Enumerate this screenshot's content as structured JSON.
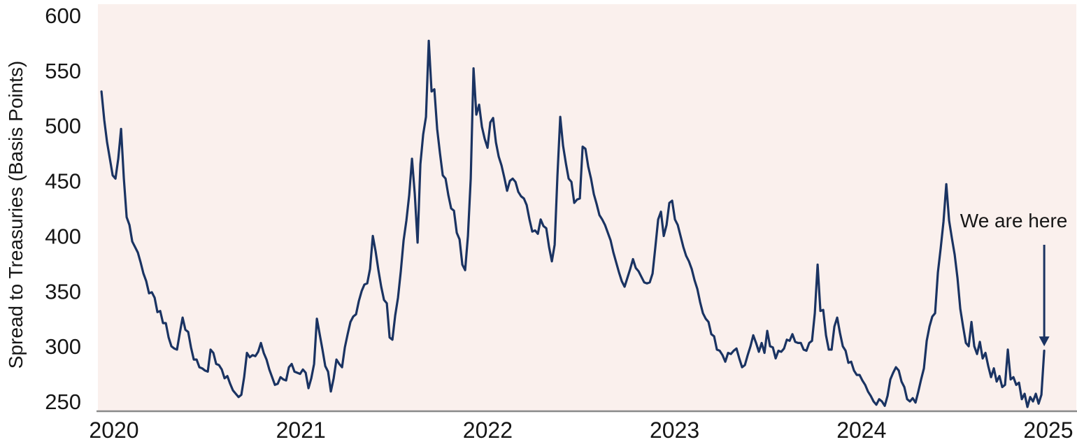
{
  "colors": {
    "line": "#1a3362",
    "plot_background": "#faf0ed",
    "axis_line": "#8a8a8a",
    "text": "#161616"
  },
  "chart_data": {
    "type": "line",
    "title": "",
    "xlabel": "",
    "ylabel": "Spread to Treasuries (Basis Points)",
    "x_ticks": [
      2020,
      2021,
      2022,
      2023,
      2024,
      2025
    ],
    "y_ticks": [
      250,
      300,
      350,
      400,
      450,
      500,
      550,
      600
    ],
    "xlim": [
      2019.92,
      2025.16
    ],
    "ylim": [
      241,
      614
    ],
    "grid": false,
    "legend_position": "none",
    "annotation": {
      "text": "We are here",
      "text_x_year": 2024.815,
      "text_y_bp": 408,
      "arrow_x_year": 2024.978,
      "arrow_top_bp": 392,
      "arrow_tip_bp": 300
    },
    "series": [
      {
        "name": "Spread to Treasuries",
        "unit": "basis points",
        "x_start_year": 2019.933,
        "x_step_years": 0.01497,
        "values": [
          531,
          505,
          485,
          470,
          455,
          452,
          470,
          497,
          452,
          417,
          410,
          395,
          390,
          385,
          376,
          366,
          359,
          348,
          349,
          344,
          331,
          332,
          321,
          321,
          308,
          300,
          298,
          297,
          312,
          326,
          315,
          313,
          299,
          288,
          288,
          281,
          280,
          278,
          277,
          297,
          294,
          284,
          283,
          279,
          271,
          273,
          266,
          260,
          257,
          254,
          256,
          272,
          294,
          290,
          292,
          291,
          295,
          303,
          294,
          288,
          279,
          272,
          265,
          266,
          272,
          270,
          269,
          281,
          284,
          277,
          276,
          275,
          279,
          276,
          262,
          271,
          284,
          325,
          311,
          297,
          282,
          277,
          259,
          271,
          288,
          284,
          281,
          299,
          311,
          322,
          327,
          329,
          341,
          350,
          356,
          357,
          370,
          400,
          386,
          369,
          354,
          342,
          339,
          308,
          306,
          328,
          344,
          368,
          396,
          414,
          437,
          470,
          438,
          394,
          465,
          492,
          508,
          577,
          531,
          533,
          497,
          475,
          455,
          452,
          437,
          425,
          423,
          403,
          397,
          374,
          369,
          400,
          452,
          552,
          510,
          519,
          499,
          488,
          480,
          503,
          507,
          485,
          472,
          464,
          453,
          441,
          450,
          452,
          449,
          440,
          436,
          434,
          428,
          415,
          404,
          405,
          402,
          415,
          409,
          407,
          390,
          377,
          392,
          455,
          508,
          482,
          466,
          452,
          449,
          430,
          433,
          434,
          481,
          479,
          463,
          452,
          438,
          429,
          419,
          415,
          410,
          403,
          396,
          385,
          376,
          367,
          359,
          354,
          362,
          370,
          379,
          371,
          368,
          363,
          358,
          357,
          358,
          366,
          390,
          415,
          422,
          400,
          410,
          430,
          432,
          415,
          410,
          400,
          390,
          382,
          377,
          370,
          360,
          352,
          340,
          330,
          325,
          322,
          311,
          309,
          297,
          296,
          292,
          286,
          294,
          293,
          296,
          298,
          289,
          281,
          283,
          292,
          300,
          310,
          303,
          295,
          303,
          294,
          314,
          300,
          299,
          289,
          296,
          295,
          298,
          306,
          305,
          311,
          304,
          303,
          303,
          297,
          296,
          303,
          305,
          330,
          374,
          332,
          333,
          310,
          297,
          297,
          318,
          326,
          312,
          300,
          296,
          285,
          286,
          278,
          274,
          274,
          269,
          265,
          259,
          255,
          250,
          247,
          252,
          250,
          246,
          255,
          270,
          276,
          281,
          278,
          268,
          263,
          252,
          250,
          253,
          249,
          259,
          270,
          280,
          305,
          318,
          327,
          330,
          367,
          389,
          413,
          447,
          414,
          398,
          383,
          362,
          334,
          318,
          303,
          300,
          322,
          300,
          293,
          304,
          289,
          294,
          282,
          272,
          280,
          268,
          273,
          263,
          265,
          297,
          270,
          272,
          265,
          267,
          252,
          257,
          245,
          254,
          250,
          257,
          248,
          256,
          296
        ]
      }
    ]
  }
}
